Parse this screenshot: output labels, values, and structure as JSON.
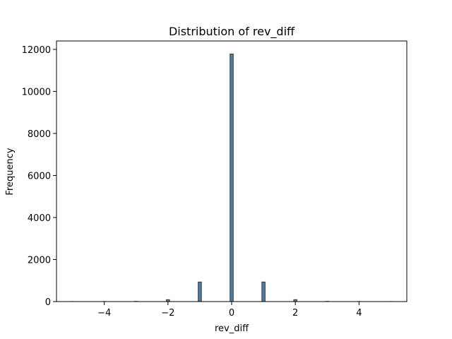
{
  "chart_data": {
    "type": "bar",
    "title": "Distribution of rev_diff",
    "xlabel": "rev_diff",
    "ylabel": "Frequency",
    "xlim": [
      -5.5,
      5.5
    ],
    "ylim": [
      0,
      12400
    ],
    "xticks": [
      -4,
      -2,
      0,
      2,
      4
    ],
    "xtick_labels": [
      "−4",
      "−2",
      "0",
      "2",
      "4"
    ],
    "yticks": [
      0,
      2000,
      4000,
      6000,
      8000,
      10000,
      12000
    ],
    "ytick_labels": [
      "0",
      "2000",
      "4000",
      "6000",
      "8000",
      "10000",
      "12000"
    ],
    "bin_width": 0.1,
    "bins": [
      {
        "x": -5,
        "count": 3
      },
      {
        "x": -4,
        "count": 4
      },
      {
        "x": -3,
        "count": 10
      },
      {
        "x": -2,
        "count": 90
      },
      {
        "x": -1,
        "count": 930
      },
      {
        "x": 0,
        "count": 11780
      },
      {
        "x": 1,
        "count": 930
      },
      {
        "x": 2,
        "count": 90
      },
      {
        "x": 3,
        "count": 10
      },
      {
        "x": 4,
        "count": 4
      },
      {
        "x": 5,
        "count": 3
      }
    ],
    "bar_color": "#4d7fa6",
    "edge_color": "#333333",
    "grid": false,
    "legend": "none"
  }
}
